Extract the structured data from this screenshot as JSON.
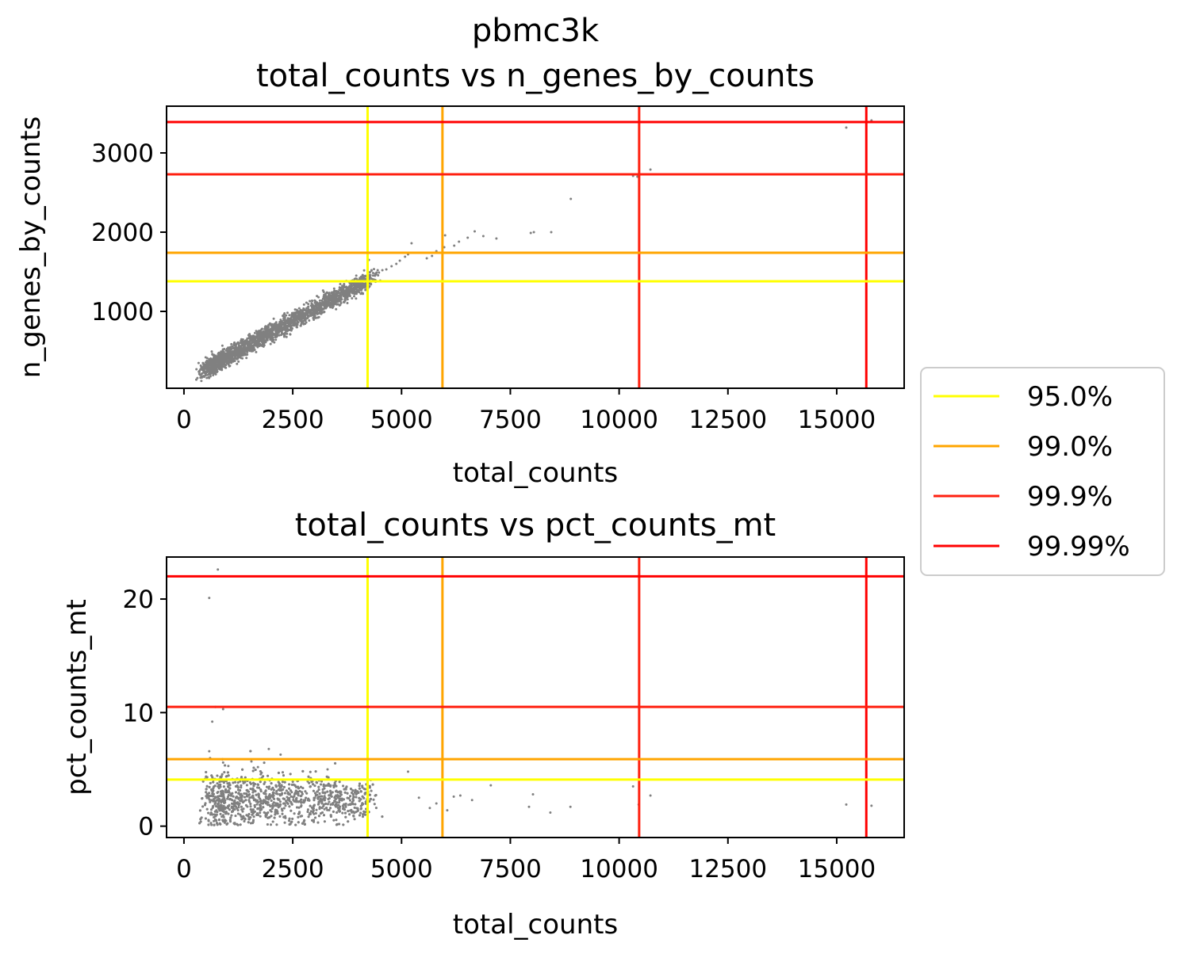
{
  "figure_title": "pbmc3k",
  "point_color": "#808080",
  "threshold_colors": {
    "95.0%": "#ffff00",
    "99.0%": "#ffa500",
    "99.9%": "#ff2010",
    "99.99%": "#ff0000"
  },
  "legend": {
    "placement": "right-center",
    "items": [
      {
        "label": "95.0%",
        "color": "#ffff00"
      },
      {
        "label": "99.0%",
        "color": "#ffa500"
      },
      {
        "label": "99.9%",
        "color": "#ff2010"
      },
      {
        "label": "99.99%",
        "color": "#ff0000"
      }
    ]
  },
  "chart_data": [
    {
      "type": "scatter",
      "title": "total_counts vs n_genes_by_counts",
      "xlabel": "total_counts",
      "ylabel": "n_genes_by_counts",
      "xlim": [
        -400,
        16550
      ],
      "ylim": [
        30,
        3590
      ],
      "xticks": [
        0,
        2500,
        5000,
        7500,
        10000,
        12500,
        15000
      ],
      "yticks": [
        1000,
        2000,
        3000
      ],
      "grid": false,
      "vlines": [
        {
          "label": "95.0%",
          "value": 4220
        },
        {
          "label": "99.0%",
          "value": 5940
        },
        {
          "label": "99.9%",
          "value": 10460
        },
        {
          "label": "99.99%",
          "value": 15680
        }
      ],
      "hlines": [
        {
          "label": "95.0%",
          "value": 1380
        },
        {
          "label": "99.0%",
          "value": 1740
        },
        {
          "label": "99.9%",
          "value": 2730
        },
        {
          "label": "99.99%",
          "value": 3390
        }
      ],
      "cloud": {
        "x_range": [
          550,
          4300
        ],
        "slope": 0.3,
        "intercept": 130,
        "spread": 60,
        "n": 2400
      },
      "outliers": [
        [
          15220,
          3320
        ],
        [
          15800,
          3410
        ],
        [
          10320,
          2710
        ],
        [
          10420,
          2700
        ],
        [
          10720,
          2790
        ],
        [
          8890,
          2420
        ],
        [
          8440,
          2000
        ],
        [
          7970,
          1990
        ],
        [
          8040,
          2000
        ],
        [
          6680,
          2010
        ],
        [
          6880,
          1950
        ],
        [
          7180,
          1920
        ],
        [
          6520,
          1930
        ],
        [
          6320,
          1880
        ],
        [
          6210,
          1830
        ],
        [
          6000,
          1960
        ],
        [
          5980,
          1810
        ],
        [
          5800,
          1760
        ],
        [
          5700,
          1700
        ],
        [
          5580,
          1670
        ],
        [
          5230,
          1860
        ],
        [
          5150,
          1720
        ],
        [
          5080,
          1690
        ],
        [
          4960,
          1640
        ],
        [
          4880,
          1600
        ],
        [
          4770,
          1570
        ],
        [
          4650,
          1530
        ],
        [
          4560,
          1520
        ],
        [
          4480,
          1490
        ],
        [
          4390,
          1450
        ],
        [
          4310,
          1520
        ],
        [
          4250,
          1650
        ],
        [
          4100,
          1400
        ]
      ]
    },
    {
      "type": "scatter",
      "title": "total_counts vs pct_counts_mt",
      "xlabel": "total_counts",
      "ylabel": "pct_counts_mt",
      "xlim": [
        -400,
        16550
      ],
      "ylim": [
        -1.0,
        23.7
      ],
      "xticks": [
        0,
        2500,
        5000,
        7500,
        10000,
        12500,
        15000
      ],
      "yticks": [
        0,
        10,
        20
      ],
      "grid": false,
      "vlines": [
        {
          "label": "95.0%",
          "value": 4220
        },
        {
          "label": "99.0%",
          "value": 5940
        },
        {
          "label": "99.9%",
          "value": 10460
        },
        {
          "label": "99.99%",
          "value": 15680
        }
      ],
      "hlines": [
        {
          "label": "95.0%",
          "value": 4.1
        },
        {
          "label": "99.0%",
          "value": 5.9
        },
        {
          "label": "99.9%",
          "value": 10.5
        },
        {
          "label": "99.99%",
          "value": 22.0
        }
      ],
      "cloud": {
        "x_range": [
          550,
          4300
        ],
        "y_center": 2.3,
        "spread": 0.9,
        "n": 2400
      },
      "outliers": [
        [
          780,
          22.6
        ],
        [
          580,
          20.1
        ],
        [
          720,
          10.5
        ],
        [
          900,
          10.3
        ],
        [
          650,
          9.2
        ],
        [
          580,
          6.6
        ],
        [
          600,
          6.0
        ],
        [
          900,
          5.6
        ],
        [
          1020,
          5.3
        ],
        [
          1950,
          6.8
        ],
        [
          2220,
          6.3
        ],
        [
          1550,
          5.7
        ],
        [
          1700,
          5.2
        ],
        [
          5150,
          4.8
        ],
        [
          3300,
          5.0
        ],
        [
          6200,
          2.6
        ],
        [
          6350,
          2.7
        ],
        [
          6620,
          2.3
        ],
        [
          7050,
          3.6
        ],
        [
          7930,
          1.7
        ],
        [
          8020,
          2.8
        ],
        [
          8420,
          1.2
        ],
        [
          8880,
          1.7
        ],
        [
          10320,
          3.5
        ],
        [
          10450,
          1.9
        ],
        [
          10720,
          2.7
        ],
        [
          15220,
          1.9
        ],
        [
          15800,
          1.8
        ],
        [
          5800,
          2.0
        ],
        [
          5650,
          1.6
        ],
        [
          6050,
          1.4
        ],
        [
          5400,
          2.5
        ]
      ]
    }
  ]
}
